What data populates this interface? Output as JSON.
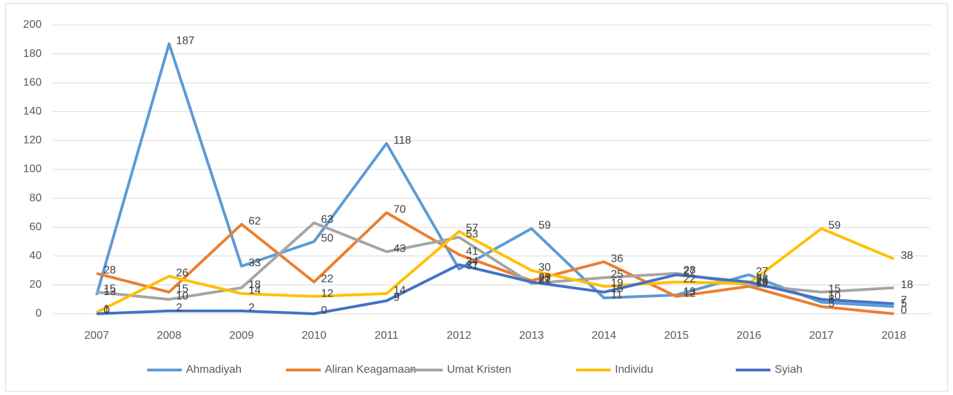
{
  "chart_data": {
    "type": "line",
    "categories": [
      "2007",
      "2008",
      "2009",
      "2010",
      "2011",
      "2012",
      "2013",
      "2014",
      "2015",
      "2016",
      "2017",
      "2018"
    ],
    "series": [
      {
        "name": "Ahmadiyah",
        "color": "#5b9bd5",
        "values": [
          13,
          187,
          33,
          50,
          118,
          31,
          59,
          11,
          13,
          27,
          8,
          5
        ]
      },
      {
        "name": "Aliran Keagamaan",
        "color": "#ed7d31",
        "values": [
          28,
          15,
          62,
          22,
          70,
          41,
          23,
          36,
          12,
          19,
          5,
          0
        ]
      },
      {
        "name": "Umat Kristen",
        "color": "#a5a5a5",
        "values": [
          15,
          10,
          18,
          63,
          43,
          53,
          21,
          25,
          28,
          20,
          15,
          18
        ]
      },
      {
        "name": "Individu",
        "color": "#ffc000",
        "values": [
          1,
          26,
          14,
          12,
          14,
          57,
          30,
          19,
          22,
          21,
          59,
          38
        ]
      },
      {
        "name": "Syiah",
        "color": "#4472c4",
        "values": [
          0,
          2,
          2,
          0,
          9,
          34,
          22,
          15,
          27,
          22,
          10,
          7
        ]
      }
    ],
    "ylim": [
      0,
      200
    ],
    "yticks": [
      0,
      20,
      40,
      60,
      80,
      100,
      120,
      140,
      160,
      180,
      200
    ],
    "grid": true,
    "legend": "bottom"
  }
}
